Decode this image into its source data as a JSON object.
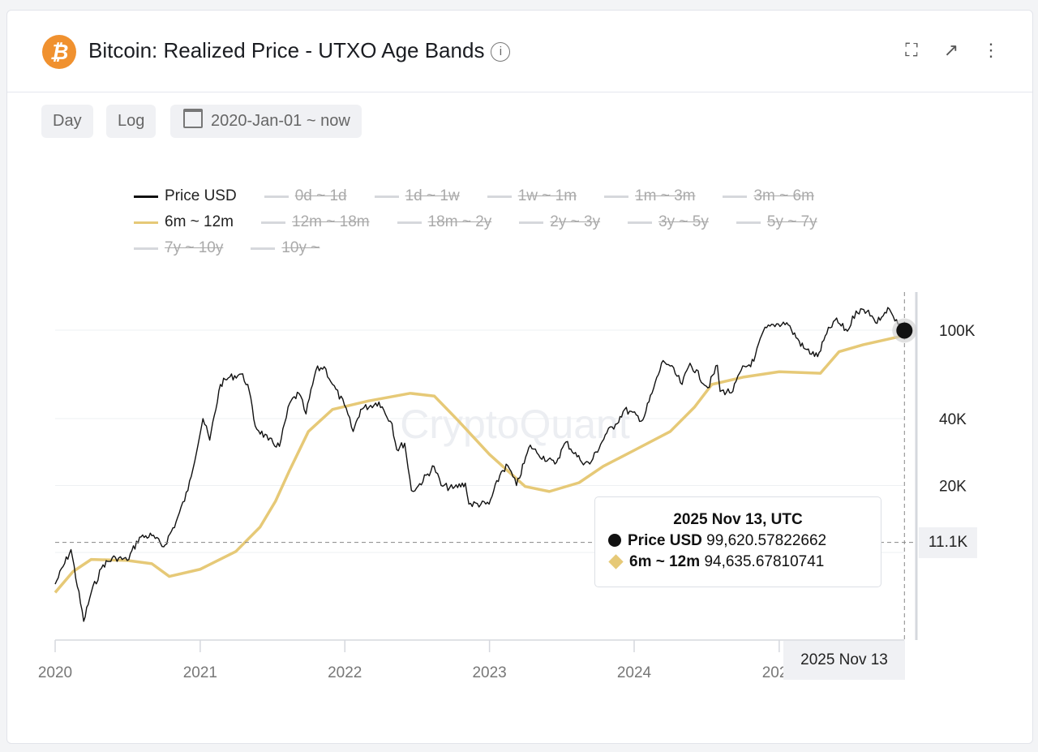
{
  "header": {
    "title": "Bitcoin: Realized Price - UTXO Age Bands",
    "logo_glyph": "₿",
    "info_icon": "info-icon",
    "actions": [
      "fullscreen-icon",
      "external-link-icon",
      "more-vertical-icon"
    ]
  },
  "controls": {
    "interval": "Day",
    "scale": "Log",
    "date_range": "2020-Jan-01 ~ now"
  },
  "watermark": "CryptoQuant",
  "tooltip": {
    "date": "2025 Nov 13, UTC",
    "rows": [
      {
        "name": "Price USD",
        "value": "99,620.57822662"
      },
      {
        "name": "6m ~ 12m",
        "value": "94,635.67810741"
      }
    ]
  },
  "crosshair": {
    "x_label": "2025 Nov 13",
    "y_label": "11.1K"
  },
  "chart_data": {
    "type": "line",
    "title": "Bitcoin: Realized Price - UTXO Age Bands",
    "yscale": "log",
    "ylim": [
      3500,
      130000
    ],
    "xlim": [
      "2020-01-01",
      "2025-11-13"
    ],
    "yticks": [
      {
        "v": 100000,
        "label": "100K"
      },
      {
        "v": 40000,
        "label": "40K"
      },
      {
        "v": 20000,
        "label": "20K"
      }
    ],
    "xticks": [
      {
        "v": "2020-01-01",
        "label": "2020"
      },
      {
        "v": "2021-01-01",
        "label": "2021"
      },
      {
        "v": "2022-01-01",
        "label": "2022"
      },
      {
        "v": "2023-01-01",
        "label": "2023"
      },
      {
        "v": "2024-01-01",
        "label": "2024"
      },
      {
        "v": "2025-01-01",
        "label": "2025"
      }
    ],
    "grid": true,
    "legend_position": "top",
    "legend": [
      [
        {
          "name": "Price USD",
          "color": "#111111",
          "on": true
        },
        {
          "name": "0d ~ 1d",
          "on": false
        },
        {
          "name": "1d ~ 1w",
          "on": false
        },
        {
          "name": "1w ~ 1m",
          "on": false
        },
        {
          "name": "1m ~ 3m",
          "on": false
        },
        {
          "name": "3m ~ 6m",
          "on": false
        }
      ],
      [
        {
          "name": "6m ~ 12m",
          "color": "#e6c977",
          "on": true
        },
        {
          "name": "12m ~ 18m",
          "on": false
        },
        {
          "name": "18m ~ 2y",
          "on": false
        },
        {
          "name": "2y ~ 3y",
          "on": false
        },
        {
          "name": "3y ~ 5y",
          "on": false
        },
        {
          "name": "5y ~ 7y",
          "on": false
        }
      ],
      [
        {
          "name": "7y ~ 10y",
          "on": false
        },
        {
          "name": "10y ~",
          "on": false
        }
      ]
    ],
    "series": [
      {
        "name": "Price USD",
        "color": "#111111",
        "points": [
          [
            "2020-01-01",
            7200
          ],
          [
            "2020-02-10",
            10300
          ],
          [
            "2020-03-13",
            4900
          ],
          [
            "2020-04-01",
            6600
          ],
          [
            "2020-05-01",
            8800
          ],
          [
            "2020-06-01",
            9500
          ],
          [
            "2020-07-01",
            9200
          ],
          [
            "2020-08-01",
            11700
          ],
          [
            "2020-09-01",
            11900
          ],
          [
            "2020-10-01",
            10600
          ],
          [
            "2020-11-01",
            13700
          ],
          [
            "2020-12-01",
            19000
          ],
          [
            "2021-01-08",
            40000
          ],
          [
            "2021-01-25",
            32000
          ],
          [
            "2021-02-21",
            57000
          ],
          [
            "2021-03-13",
            61000
          ],
          [
            "2021-04-14",
            63500
          ],
          [
            "2021-05-01",
            57000
          ],
          [
            "2021-05-20",
            37000
          ],
          [
            "2021-06-22",
            32000
          ],
          [
            "2021-07-20",
            30000
          ],
          [
            "2021-08-15",
            47000
          ],
          [
            "2021-09-07",
            52000
          ],
          [
            "2021-09-25",
            42000
          ],
          [
            "2021-10-20",
            66000
          ],
          [
            "2021-11-10",
            68500
          ],
          [
            "2021-12-01",
            57000
          ],
          [
            "2021-12-31",
            46000
          ],
          [
            "2022-01-22",
            35000
          ],
          [
            "2022-02-10",
            44000
          ],
          [
            "2022-03-28",
            47500
          ],
          [
            "2022-04-30",
            38000
          ],
          [
            "2022-05-12",
            29000
          ],
          [
            "2022-06-01",
            31000
          ],
          [
            "2022-06-18",
            19000
          ],
          [
            "2022-07-01",
            19500
          ],
          [
            "2022-08-14",
            24400
          ],
          [
            "2022-09-01",
            20000
          ],
          [
            "2022-10-01",
            19400
          ],
          [
            "2022-11-01",
            20500
          ],
          [
            "2022-11-10",
            16500
          ],
          [
            "2022-12-31",
            16500
          ],
          [
            "2023-01-31",
            23100
          ],
          [
            "2023-02-16",
            24600
          ],
          [
            "2023-03-10",
            20000
          ],
          [
            "2023-04-14",
            30400
          ],
          [
            "2023-05-01",
            28000
          ],
          [
            "2023-06-15",
            25000
          ],
          [
            "2023-07-13",
            31400
          ],
          [
            "2023-08-18",
            26000
          ],
          [
            "2023-09-11",
            25000
          ],
          [
            "2023-10-24",
            34500
          ],
          [
            "2023-11-15",
            37700
          ],
          [
            "2023-12-08",
            44000
          ],
          [
            "2024-01-23",
            39500
          ],
          [
            "2024-02-15",
            52000
          ],
          [
            "2024-03-14",
            73000
          ],
          [
            "2024-04-01",
            69000
          ],
          [
            "2024-05-01",
            57000
          ],
          [
            "2024-05-21",
            71000
          ],
          [
            "2024-07-05",
            55000
          ],
          [
            "2024-07-29",
            69500
          ],
          [
            "2024-08-05",
            53000
          ],
          [
            "2024-09-06",
            53000
          ],
          [
            "2024-09-27",
            66000
          ],
          [
            "2024-10-29",
            72500
          ],
          [
            "2024-11-22",
            99000
          ],
          [
            "2024-12-17",
            106000
          ],
          [
            "2025-01-20",
            108000
          ],
          [
            "2025-02-01",
            100000
          ],
          [
            "2025-03-04",
            83000
          ],
          [
            "2025-04-08",
            76000
          ],
          [
            "2025-05-01",
            96500
          ],
          [
            "2025-05-22",
            111000
          ],
          [
            "2025-06-22",
            99000
          ],
          [
            "2025-07-14",
            122000
          ],
          [
            "2025-08-14",
            123000
          ],
          [
            "2025-09-01",
            108000
          ],
          [
            "2025-10-06",
            124500
          ],
          [
            "2025-10-20",
            110000
          ],
          [
            "2025-11-13",
            99620.58
          ]
        ]
      },
      {
        "name": "6m ~ 12m",
        "color": "#e6c977",
        "points": [
          [
            "2020-01-01",
            6600
          ],
          [
            "2020-02-15",
            8200
          ],
          [
            "2020-04-01",
            9300
          ],
          [
            "2020-07-01",
            9200
          ],
          [
            "2020-09-01",
            8900
          ],
          [
            "2020-10-15",
            7800
          ],
          [
            "2021-01-01",
            8400
          ],
          [
            "2021-04-01",
            10100
          ],
          [
            "2021-06-01",
            13000
          ],
          [
            "2021-07-10",
            17000
          ],
          [
            "2021-08-15",
            23500
          ],
          [
            "2021-10-01",
            35000
          ],
          [
            "2021-12-01",
            44000
          ],
          [
            "2022-03-01",
            48000
          ],
          [
            "2022-06-15",
            52000
          ],
          [
            "2022-08-15",
            50500
          ],
          [
            "2022-10-15",
            39000
          ],
          [
            "2023-01-01",
            27600
          ],
          [
            "2023-04-01",
            19800
          ],
          [
            "2023-06-01",
            18800
          ],
          [
            "2023-08-15",
            20600
          ],
          [
            "2023-10-15",
            24400
          ],
          [
            "2024-01-01",
            28800
          ],
          [
            "2024-04-01",
            35000
          ],
          [
            "2024-06-01",
            45000
          ],
          [
            "2024-07-15",
            57000
          ],
          [
            "2024-10-01",
            61400
          ],
          [
            "2025-01-01",
            65000
          ],
          [
            "2025-04-15",
            64000
          ],
          [
            "2025-06-01",
            80000
          ],
          [
            "2025-08-01",
            86000
          ],
          [
            "2025-11-13",
            94635.68
          ]
        ]
      }
    ]
  }
}
